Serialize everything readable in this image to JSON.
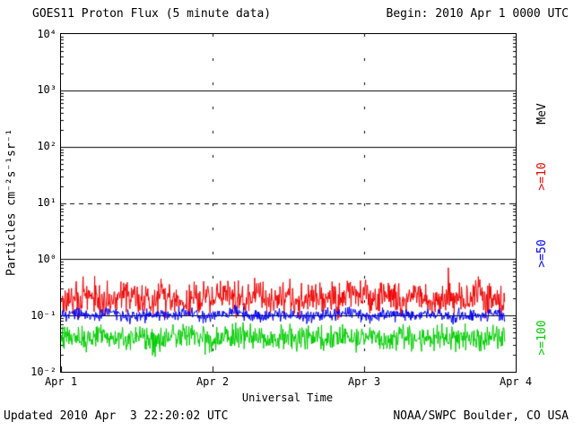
{
  "header": {
    "title": "GOES11 Proton Flux (5 minute data)",
    "begin": "Begin: 2010 Apr 1 0000 UTC"
  },
  "footer": {
    "updated": "Updated 2010 Apr  3 22:20:02 UTC",
    "source": "NOAA/SWPC Boulder, CO USA"
  },
  "legend": {
    "unit": "MeV",
    "unit_color": "#000000",
    "entries": [
      {
        "label": ">=10",
        "color": "#ee0000"
      },
      {
        "label": ">=50",
        "color": "#0000ee"
      },
      {
        "label": ">=100",
        "color": "#00cc00"
      }
    ]
  },
  "chart_data": {
    "type": "line",
    "title": "GOES11 Proton Flux (5 minute data)",
    "xlabel": "Universal Time",
    "ylabel": "Particles cm⁻²s⁻¹sr⁻¹",
    "x_days": 3,
    "points_per_day": 288,
    "sample_interval_hours": 2,
    "data_end_fraction": 0.977,
    "seed": 20100403,
    "y_log_range": [
      -2,
      4
    ],
    "y_tick_labels": [
      "10⁴",
      "10³",
      "10²",
      "10¹",
      "10⁰",
      "10⁻¹",
      "10⁻²"
    ],
    "x_tick_days": [
      0,
      1,
      2,
      3
    ],
    "x_tick_labels": [
      "Apr 1",
      "Apr 2",
      "Apr 3",
      "Apr 4"
    ],
    "hlines": [
      {
        "value": 1000,
        "style": "solid"
      },
      {
        "value": 100,
        "style": "solid"
      },
      {
        "value": 10,
        "style": "dashed"
      },
      {
        "value": 1,
        "style": "solid"
      },
      {
        "value": 0.1,
        "style": "solid"
      }
    ],
    "vlines_days": [
      1,
      2
    ],
    "series": [
      {
        "name": ">=10 MeV",
        "color": "#ee0000",
        "noise_dex": 0.14,
        "spike_prob": 0.02,
        "spike_dex": 0.4,
        "samples": [
          0.2,
          0.17,
          0.23,
          0.19,
          0.15,
          0.27,
          0.21,
          0.18,
          0.24,
          0.2,
          0.16,
          0.22,
          0.19,
          0.26,
          0.18,
          0.21,
          0.25,
          0.18,
          0.22,
          0.16,
          0.24,
          0.2,
          0.17,
          0.26,
          0.21,
          0.19,
          0.23,
          0.17,
          0.25,
          0.2,
          0.18,
          0.22,
          0.19,
          0.24,
          0.18,
          0.21,
          0.2
        ]
      },
      {
        "name": ">=50 MeV",
        "color": "#0000ee",
        "noise_dex": 0.055,
        "spike_prob": 0,
        "spike_dex": 0,
        "samples": [
          0.1,
          0.108,
          0.095,
          0.102,
          0.112,
          0.098,
          0.094,
          0.106,
          0.1,
          0.103,
          0.11,
          0.096,
          0.1,
          0.104,
          0.114,
          0.099,
          0.093,
          0.107,
          0.101,
          0.098,
          0.095,
          0.108,
          0.102,
          0.112,
          0.099,
          0.094,
          0.101,
          0.106,
          0.1,
          0.103,
          0.109,
          0.096,
          0.1,
          0.102,
          0.107,
          0.099,
          0.101
        ]
      },
      {
        "name": ">=100 MeV",
        "color": "#00cc00",
        "noise_dex": 0.11,
        "spike_prob": 0,
        "spike_dex": 0,
        "samples": [
          0.04,
          0.044,
          0.036,
          0.048,
          0.04,
          0.038,
          0.045,
          0.041,
          0.035,
          0.042,
          0.047,
          0.039,
          0.036,
          0.044,
          0.04,
          0.046,
          0.037,
          0.042,
          0.04,
          0.035,
          0.045,
          0.041,
          0.043,
          0.038,
          0.044,
          0.04,
          0.036,
          0.046,
          0.041,
          0.042,
          0.038,
          0.04,
          0.045,
          0.039,
          0.042,
          0.04,
          0.041
        ]
      }
    ]
  }
}
